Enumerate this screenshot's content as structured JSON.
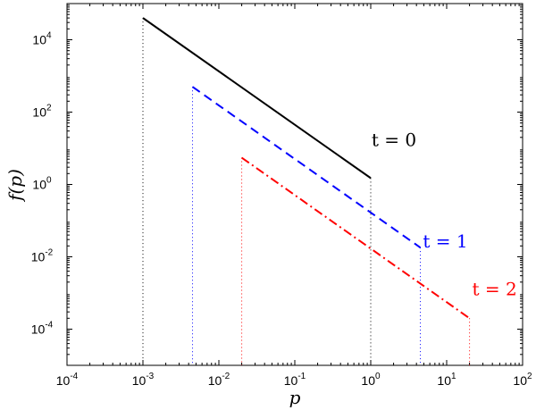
{
  "chart_data": {
    "type": "line",
    "title": "",
    "xlabel": "p",
    "ylabel": "f(p)",
    "xscale": "log",
    "yscale": "log",
    "xlim": [
      0.0001,
      100
    ],
    "ylim": [
      1e-05,
      100000
    ],
    "x_ticks": [
      {
        "base": "10",
        "exp": "-4",
        "value": 0.0001
      },
      {
        "base": "10",
        "exp": "-3",
        "value": 0.001
      },
      {
        "base": "10",
        "exp": "-2",
        "value": 0.01
      },
      {
        "base": "10",
        "exp": "-1",
        "value": 0.1
      },
      {
        "base": "10",
        "exp": "0",
        "value": 1
      },
      {
        "base": "10",
        "exp": "1",
        "value": 10
      },
      {
        "base": "10",
        "exp": "2",
        "value": 100
      }
    ],
    "y_ticks": [
      {
        "base": "10",
        "exp": "4",
        "value": 10000
      },
      {
        "base": "10",
        "exp": "2",
        "value": 100
      },
      {
        "base": "10",
        "exp": "0",
        "value": 1
      },
      {
        "base": "10",
        "exp": "-2",
        "value": 0.01
      },
      {
        "base": "10",
        "exp": "-4",
        "value": 0.0001
      }
    ],
    "grid": false,
    "legend": "none",
    "series": [
      {
        "label": "t = 0",
        "color": "#000000",
        "style": "solid",
        "x": [
          0.001,
          1
        ],
        "y": [
          40000,
          1.5
        ]
      },
      {
        "label": "t = 1",
        "color": "#0000ff",
        "style": "dashed",
        "x": [
          0.0045,
          4.5
        ],
        "y": [
          500,
          0.018
        ]
      },
      {
        "label": "t = 2",
        "color": "#ff0000",
        "style": "dashdot",
        "x": [
          0.02,
          20
        ],
        "y": [
          5.5,
          0.0002
        ]
      }
    ]
  }
}
